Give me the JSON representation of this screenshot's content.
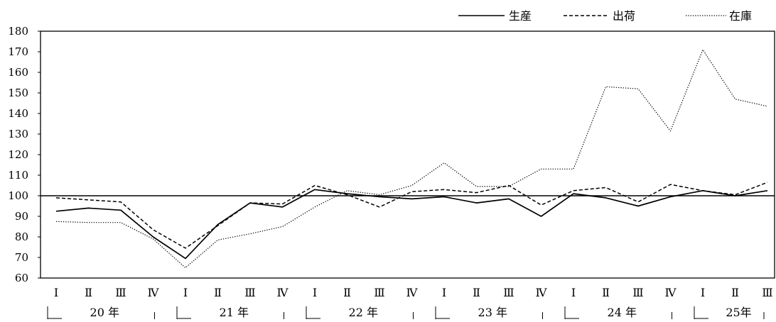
{
  "chart_data": {
    "type": "line",
    "title": "",
    "xlabel": "",
    "ylabel": "",
    "ylim": [
      60,
      180
    ],
    "yticks": [
      60,
      70,
      80,
      90,
      100,
      110,
      120,
      130,
      140,
      150,
      160,
      170,
      180
    ],
    "reference_line": 100,
    "grid": false,
    "legend_position": "top-right",
    "categories": [
      "Ⅰ",
      "Ⅱ",
      "Ⅲ",
      "Ⅳ",
      "Ⅰ",
      "Ⅱ",
      "Ⅲ",
      "Ⅳ",
      "Ⅰ",
      "Ⅱ",
      "Ⅲ",
      "Ⅳ",
      "Ⅰ",
      "Ⅱ",
      "Ⅲ",
      "Ⅳ",
      "Ⅰ",
      "Ⅱ",
      "Ⅲ",
      "Ⅳ",
      "Ⅰ",
      "Ⅱ",
      "Ⅲ"
    ],
    "year_groups": [
      {
        "label": "20 年",
        "start": 0,
        "count": 4,
        "closed": true
      },
      {
        "label": "21 年",
        "start": 4,
        "count": 4,
        "closed": true
      },
      {
        "label": "22 年",
        "start": 8,
        "count": 4,
        "closed": true
      },
      {
        "label": "23 年",
        "start": 12,
        "count": 4,
        "closed": true
      },
      {
        "label": "24 年",
        "start": 16,
        "count": 4,
        "closed": true
      },
      {
        "label": "25年",
        "start": 20,
        "count": 3,
        "closed": false
      }
    ],
    "series": [
      {
        "name": "生産",
        "style": "solid",
        "color": "#000000",
        "values": [
          92.5,
          94,
          93,
          80,
          69.5,
          86,
          96.5,
          94.5,
          103,
          101,
          99.5,
          98.5,
          99.5,
          96.5,
          98.5,
          90,
          101,
          99,
          95,
          99.5,
          102.5,
          100,
          102.5
        ]
      },
      {
        "name": "出荷",
        "style": "dashed",
        "color": "#000000",
        "values": [
          99,
          98,
          97,
          83.5,
          74.5,
          85.5,
          96.5,
          96,
          105,
          100.5,
          94.5,
          102,
          103,
          101.5,
          105,
          95.5,
          102.5,
          104,
          97,
          105.5,
          102.5,
          100.5,
          106.5
        ]
      },
      {
        "name": "在庫",
        "style": "dotted",
        "color": "#000000",
        "values": [
          87.5,
          87,
          87,
          79,
          65,
          78.5,
          81.5,
          85,
          94.5,
          102.5,
          100.5,
          105,
          116,
          104.5,
          104.5,
          113,
          113,
          153,
          152,
          131.5,
          171,
          147,
          143.5
        ]
      }
    ]
  }
}
